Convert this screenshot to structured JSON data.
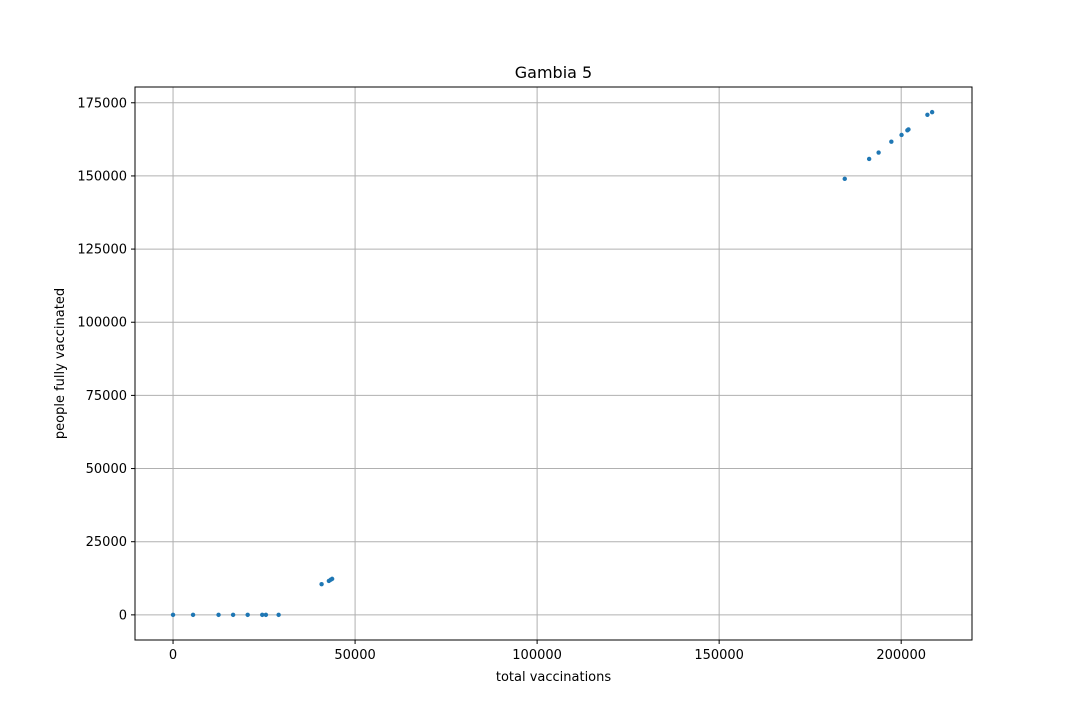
{
  "chart_data": {
    "type": "scatter",
    "title": "Gambia 5",
    "xlabel": "total vaccinations",
    "ylabel": "people fully vaccinated",
    "xlim": [
      -10450,
      219450
    ],
    "ylim": [
      -8590,
      180390
    ],
    "xticks": [
      0,
      50000,
      100000,
      150000,
      200000
    ],
    "xtick_labels": [
      "0",
      "50000",
      "100000",
      "150000",
      "200000"
    ],
    "yticks": [
      0,
      25000,
      50000,
      75000,
      100000,
      125000,
      150000,
      175000
    ],
    "ytick_labels": [
      "0",
      "25000",
      "50000",
      "75000",
      "100000",
      "125000",
      "150000",
      "175000"
    ],
    "grid": true,
    "marker_color": "#1f77b4",
    "points": [
      {
        "x": 0,
        "y": 0
      },
      {
        "x": 5500,
        "y": 0
      },
      {
        "x": 12500,
        "y": 0
      },
      {
        "x": 16500,
        "y": 0
      },
      {
        "x": 20500,
        "y": 0
      },
      {
        "x": 24500,
        "y": 0
      },
      {
        "x": 25500,
        "y": 0
      },
      {
        "x": 29000,
        "y": 0
      },
      {
        "x": 40800,
        "y": 10500
      },
      {
        "x": 42800,
        "y": 11600
      },
      {
        "x": 43300,
        "y": 12000
      },
      {
        "x": 43700,
        "y": 12300
      },
      {
        "x": 184500,
        "y": 149000
      },
      {
        "x": 191200,
        "y": 155800
      },
      {
        "x": 193800,
        "y": 158000
      },
      {
        "x": 197300,
        "y": 161700
      },
      {
        "x": 200100,
        "y": 164000
      },
      {
        "x": 201700,
        "y": 165600
      },
      {
        "x": 202000,
        "y": 165900
      },
      {
        "x": 207200,
        "y": 170900
      },
      {
        "x": 208500,
        "y": 171800
      }
    ]
  }
}
